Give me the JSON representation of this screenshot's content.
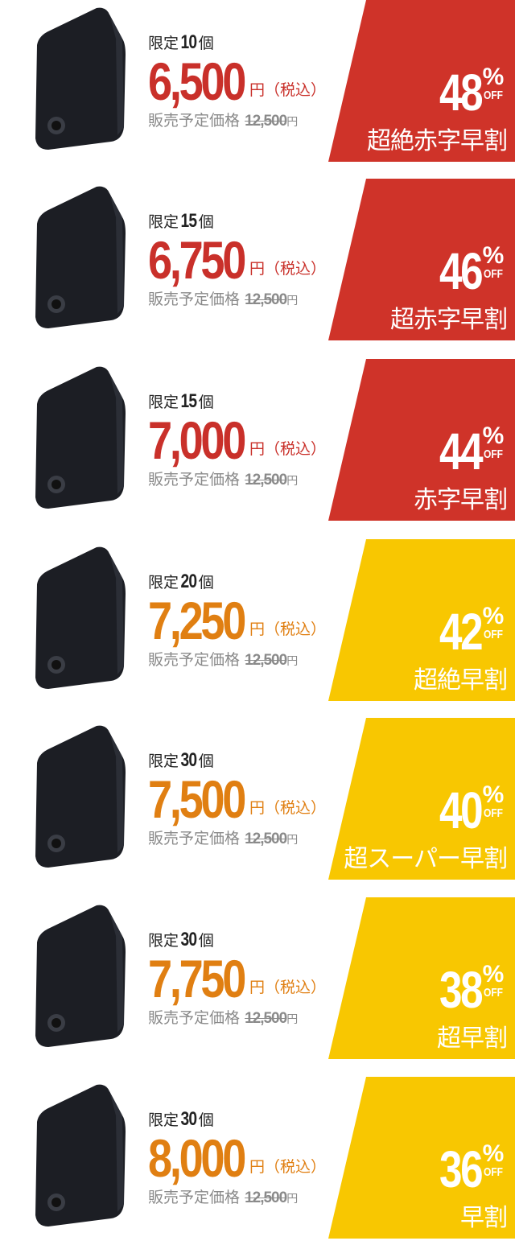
{
  "colors": {
    "red": "#cf3329",
    "yellow": "#f8c701",
    "red_price": "#c9302a",
    "orange_price": "#e07f12"
  },
  "common": {
    "limit_prefix": "限定",
    "limit_suffix": "個",
    "yen_tax": "円（税込）",
    "orig_label": "販売予定価格",
    "orig_price": "12,500",
    "orig_yen": "円",
    "off": "OFF",
    "percent": "%"
  },
  "tiers": [
    {
      "limit": "10",
      "price": "6,500",
      "discount": "48",
      "label": "超絶赤字早割",
      "color": "red"
    },
    {
      "limit": "15",
      "price": "6,750",
      "discount": "46",
      "label": "超赤字早割",
      "color": "red"
    },
    {
      "limit": "15",
      "price": "7,000",
      "discount": "44",
      "label": "赤字早割",
      "color": "red"
    },
    {
      "limit": "20",
      "price": "7,250",
      "discount": "42",
      "label": "超絶早割",
      "color": "yellow"
    },
    {
      "limit": "30",
      "price": "7,500",
      "discount": "40",
      "label": "超スーパー早割",
      "color": "yellow"
    },
    {
      "limit": "30",
      "price": "7,750",
      "discount": "38",
      "label": "超早割",
      "color": "yellow"
    },
    {
      "limit": "30",
      "price": "8,000",
      "discount": "36",
      "label": "早割",
      "color": "yellow"
    }
  ]
}
